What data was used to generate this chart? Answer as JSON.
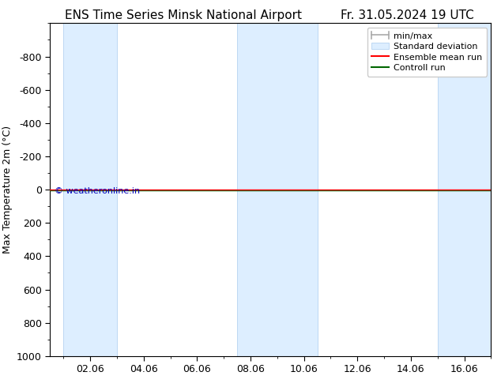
{
  "title_left": "ENS Time Series Minsk National Airport",
  "title_right": "Fr. 31.05.2024 19 UTC",
  "ylabel": "Max Temperature 2m (°C)",
  "ylim_bottom": 1000,
  "ylim_top": -1000,
  "ytick_vals": [
    -800,
    -600,
    -400,
    -200,
    0,
    200,
    400,
    600,
    800,
    1000
  ],
  "xtick_labels": [
    "02.06",
    "04.06",
    "06.06",
    "08.06",
    "10.06",
    "12.06",
    "14.06",
    "16.06"
  ],
  "xtick_positions": [
    2,
    4,
    6,
    8,
    10,
    12,
    14,
    16
  ],
  "xlim": [
    0.5,
    17.0
  ],
  "shaded_bands": [
    {
      "x_start": 1.0,
      "x_end": 3.0
    },
    {
      "x_start": 7.5,
      "x_end": 10.5
    },
    {
      "x_start": 15.0,
      "x_end": 17.0
    }
  ],
  "shaded_color": "#ddeeff",
  "shaded_edge_color": "#aaccee",
  "ensemble_mean_color": "#ff0000",
  "control_run_color": "#006600",
  "watermark": "© weatheronline.in",
  "watermark_color": "#0000bb",
  "bg_color": "#ffffff",
  "border_color": "#000000",
  "font_size_title": 11,
  "font_size_axis_label": 9,
  "font_size_tick": 9,
  "font_size_legend": 8,
  "font_size_watermark": 8,
  "legend_minmax_color": "#aaaaaa",
  "legend_std_face": "#ddeeff",
  "legend_std_edge": "#aaccee"
}
